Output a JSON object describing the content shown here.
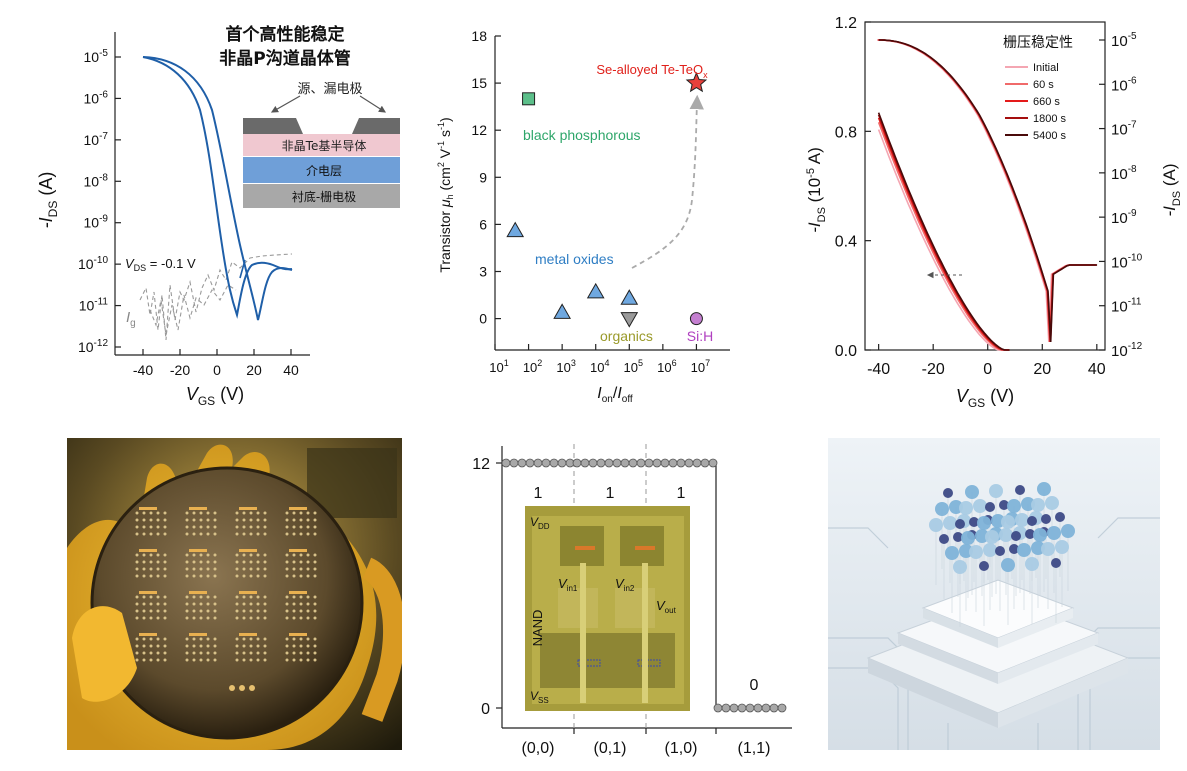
{
  "panel_a": {
    "title_line1": "首个高性能稳定",
    "title_line2": "非晶P沟道晶体管",
    "y_label": "-I",
    "y_label_sub": "DS",
    "y_label_unit": " (A)",
    "x_label": "V",
    "x_label_sub": "GS",
    "x_label_unit": " (V)",
    "y_ticks": [
      {
        "b": "10",
        "e": "-5"
      },
      {
        "b": "10",
        "e": "-6"
      },
      {
        "b": "10",
        "e": "-7"
      },
      {
        "b": "10",
        "e": "-8"
      },
      {
        "b": "10",
        "e": "-9"
      },
      {
        "b": "10",
        "e": "-10"
      },
      {
        "b": "10",
        "e": "-11"
      },
      {
        "b": "10",
        "e": "-12"
      }
    ],
    "x_ticks": [
      "-40",
      "-20",
      "0",
      "20",
      "40"
    ],
    "vds_label": "V",
    "vds_sub": "DS",
    "vds_value": " = -0.1 V",
    "ig_label": "I",
    "ig_sub": "g",
    "electrode_label": "源、漏电极",
    "layer_semiconductor": "非晶Te基半导体",
    "layer_dielectric": "介电层",
    "layer_substrate": "衬底-栅电极",
    "colors": {
      "transfer": "#1f5fa8",
      "gate": "#9a9a9a",
      "semi": "#f0c8d0",
      "dielectric": "#6f9fd8",
      "substrate": "#a8a8a8"
    }
  },
  "panel_b": {
    "chart_data": {
      "type": "scatter",
      "ylabel": "Transistor μh (cm² V⁻¹ s⁻¹)",
      "xlabel": "Ion/Ioff",
      "x_scale": "log",
      "xlim": [
        10,
        100000000
      ],
      "ylim": [
        -2,
        18
      ],
      "y_ticks": [
        0,
        3,
        6,
        9,
        12,
        15,
        18
      ],
      "x_ticks": [
        {
          "b": "10",
          "e": "1"
        },
        {
          "b": "10",
          "e": "2"
        },
        {
          "b": "10",
          "e": "3"
        },
        {
          "b": "10",
          "e": "4"
        },
        {
          "b": "10",
          "e": "5"
        },
        {
          "b": "10",
          "e": "6"
        },
        {
          "b": "10",
          "e": "7"
        }
      ],
      "points": [
        {
          "group": "Se-alloyed Te-TeOx",
          "marker": "star",
          "x": 10000000,
          "y": 15.0,
          "color": "#e8403a"
        },
        {
          "group": "black phosphorous",
          "marker": "square",
          "x": 100,
          "y": 14.0,
          "color": "#5cbf8a"
        },
        {
          "group": "metal oxides",
          "marker": "triangle",
          "x": 40,
          "y": 5.6,
          "color": "#6fa8e0"
        },
        {
          "group": "metal oxides",
          "marker": "triangle",
          "x": 1000,
          "y": 0.4,
          "color": "#6fa8e0"
        },
        {
          "group": "metal oxides",
          "marker": "triangle",
          "x": 10000,
          "y": 1.7,
          "color": "#6fa8e0"
        },
        {
          "group": "metal oxides",
          "marker": "triangle",
          "x": 100000,
          "y": 1.3,
          "color": "#6fa8e0"
        },
        {
          "group": "organics",
          "marker": "triangle-down",
          "x": 100000,
          "y": 0.0,
          "color": "#9a9a9a"
        },
        {
          "group": "Si:H",
          "marker": "circle",
          "x": 10000000,
          "y": 0.0,
          "color": "#c47fd0"
        }
      ]
    },
    "y_label_prefix": "Transistor ",
    "y_label_mu": "μ",
    "y_label_mu_sub": "h",
    "y_label_unit_a": " (cm",
    "y_label_sup2": "2",
    "y_label_unit_b": " V",
    "y_label_sup_m1a": "-1",
    "y_label_unit_c": " s",
    "y_label_sup_m1b": "-1",
    "y_label_unit_d": ")",
    "x_label_on": "I",
    "x_label_on_sub": "on",
    "x_label_slash": "/",
    "x_label_off": "I",
    "x_label_off_sub": "off",
    "ann_se": "Se-alloyed Te-TeO",
    "ann_se_sub": "x",
    "ann_bp": "black phosphorous",
    "ann_mo": "metal oxides",
    "ann_org": "organics",
    "ann_si": "Si:H",
    "colors": {
      "se": "#e0201a",
      "bp": "#2ea66a",
      "mo": "#2f7ec4",
      "org": "#9a9a2a",
      "si": "#b040c0"
    }
  },
  "panel_c": {
    "chart_data": {
      "type": "line",
      "title": "栅压稳定性",
      "xlabel": "VGS (V)",
      "ylabel_left": "-IDS (10^-5 A)",
      "ylabel_right": "-IDS (A)",
      "xlim": [
        -45,
        43
      ],
      "ylim_left": [
        0,
        1.2
      ],
      "x_ticks": [
        "-40",
        "-20",
        "0",
        "20",
        "40"
      ],
      "y_ticks_left": [
        "0.0",
        "0.4",
        "0.8",
        "1.2"
      ],
      "y_ticks_right": [
        {
          "b": "10",
          "e": "-5"
        },
        {
          "b": "10",
          "e": "-6"
        },
        {
          "b": "10",
          "e": "-7"
        },
        {
          "b": "10",
          "e": "-8"
        },
        {
          "b": "10",
          "e": "-9"
        },
        {
          "b": "10",
          "e": "-10"
        },
        {
          "b": "10",
          "e": "-11"
        },
        {
          "b": "10",
          "e": "-12"
        }
      ],
      "series": [
        {
          "name": "Initial",
          "color": "#f4a6b2",
          "shift": -2.0
        },
        {
          "name": "60 s",
          "color": "#f06a6a",
          "shift": -1.0
        },
        {
          "name": "660 s",
          "color": "#e41a1a",
          "shift": -0.4
        },
        {
          "name": "1800 s",
          "color": "#a50e0e",
          "shift": 0.0
        },
        {
          "name": "5400 s",
          "color": "#4a0a0a",
          "shift": 0.3
        }
      ]
    },
    "y_left_label": "-I",
    "y_left_sub": "DS",
    "y_left_unit": " (10",
    "y_left_sup": "-5",
    "y_left_end": " A)",
    "y_right_label": "-I",
    "y_right_sub": "DS",
    "y_right_unit": " (A)",
    "x_label": "V",
    "x_label_sub": "GS",
    "x_label_unit": " (V)"
  },
  "panel_e": {
    "chart_data": {
      "type": "scatter",
      "categories": [
        "(0,0)",
        "(0,1)",
        "(1,0)",
        "(1,1)"
      ],
      "values": [
        12,
        12,
        12,
        0
      ],
      "logic": [
        "1",
        "1",
        "1",
        "0"
      ],
      "y_ticks": [
        "12",
        "0"
      ]
    },
    "inset_vdd": "V",
    "inset_vdd_sub": "DD",
    "inset_vss": "V",
    "inset_vss_sub": "SS",
    "inset_vin1": "V",
    "inset_vin1_sub": "in1",
    "inset_vin2": "V",
    "inset_vin2_sub": "in2",
    "inset_vout": "V",
    "inset_vout_sub": "out",
    "inset_nand": "NAND"
  }
}
